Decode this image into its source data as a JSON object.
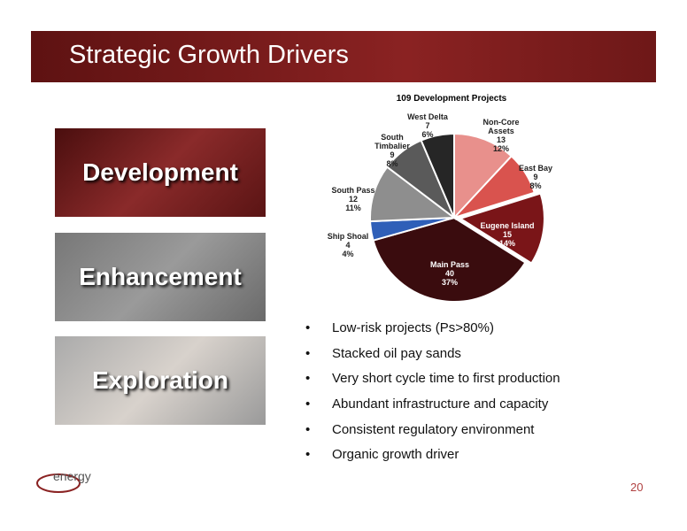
{
  "header": {
    "title": "Strategic Growth Drivers"
  },
  "panels": [
    "Development",
    "Enhancement",
    "Exploration"
  ],
  "chart_data": {
    "type": "pie",
    "title": "109 Development Projects",
    "categories": [
      "Non-Core Assets",
      "East Bay",
      "Eugene Island",
      "Main Pass",
      "Ship Shoal",
      "South Pass",
      "South Timbalier",
      "West Delta"
    ],
    "values": [
      13,
      9,
      15,
      40,
      4,
      12,
      9,
      7
    ],
    "percent_labels": [
      "12%",
      "8%",
      "14%",
      "37%",
      "4%",
      "11%",
      "8%",
      "6%"
    ],
    "colors": [
      "#e8908c",
      "#d9534e",
      "#7a1518",
      "#3a0c0e",
      "#2f5fb8",
      "#8e8e8e",
      "#5a5a5a",
      "#262626"
    ]
  },
  "bullets": [
    "Low-risk projects (Ps>80%)",
    "Stacked oil pay sands",
    "Very short cycle time to first production",
    "Abundant infrastructure and capacity",
    "Consistent regulatory environment",
    "Organic growth driver"
  ],
  "logo": "energy",
  "page_number": "20"
}
